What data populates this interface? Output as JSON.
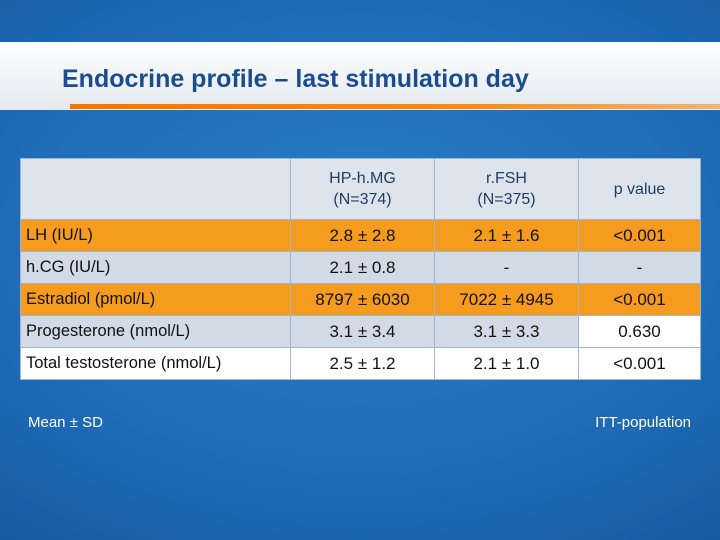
{
  "title": "Endocrine profile – last stimulation day",
  "table": {
    "headers": [
      {
        "line1": "",
        "line2": ""
      },
      {
        "line1": "HP-h.MG",
        "line2": "(N=374)"
      },
      {
        "line1": "r.FSH",
        "line2": "(N=375)"
      },
      {
        "line1": "p value",
        "line2": ""
      }
    ],
    "rows": [
      {
        "label": "LH (IU/L)",
        "hpmg": "2.8 ± 2.8",
        "rfsh": "2.1 ± 1.6",
        "p": "<0.001"
      },
      {
        "label": "h.CG (IU/L)",
        "hpmg": "2.1 ± 0.8",
        "rfsh": "-",
        "p": "-"
      },
      {
        "label": "Estradiol (pmol/L)",
        "hpmg": "8797 ± 6030",
        "rfsh": "7022 ± 4945",
        "p": "<0.001"
      },
      {
        "label": "Progesterone (nmol/L)",
        "hpmg": "3.1 ± 3.4",
        "rfsh": "3.1 ± 3.3",
        "p": "0.630"
      },
      {
        "label": "Total testosterone (nmol/L)",
        "hpmg": "2.5 ± 1.2",
        "rfsh": "2.1 ± 1.0",
        "p": "<0.001"
      }
    ]
  },
  "footnote_left": "Mean ± SD",
  "footnote_right": "ITT-population",
  "colors": {
    "accent_orange": "#f59b1e",
    "title_blue": "#1a4d8f",
    "background_blue": "#1d68b4"
  }
}
